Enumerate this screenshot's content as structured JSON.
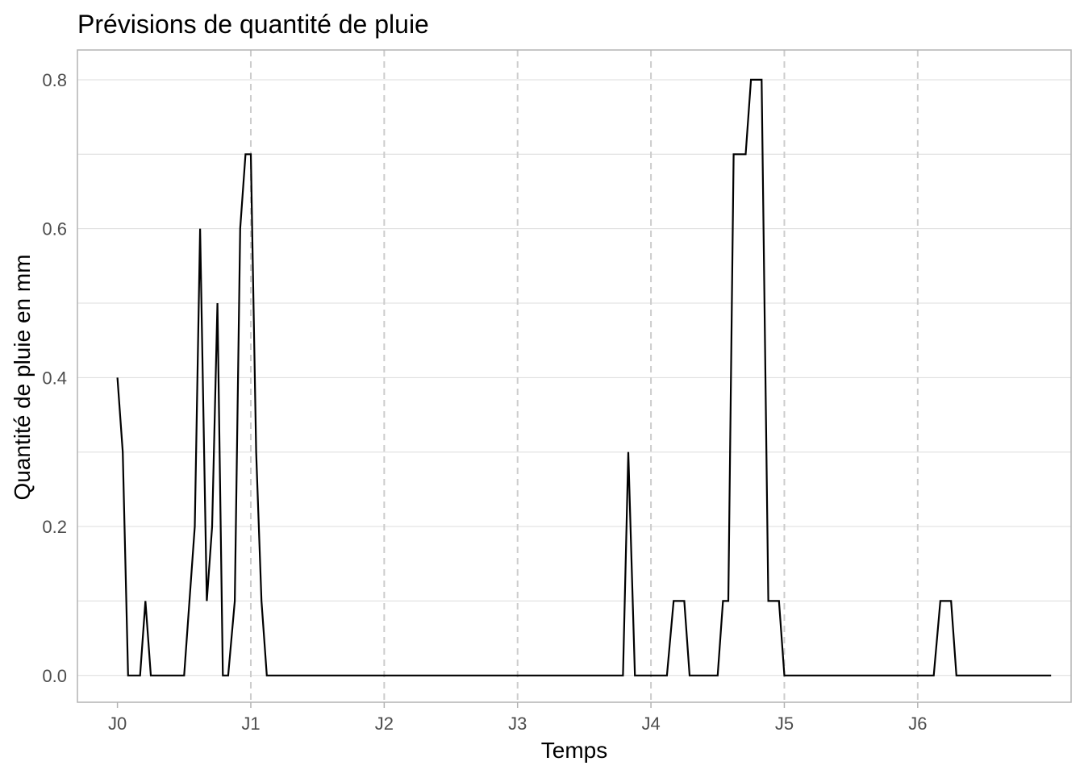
{
  "chart_data": {
    "type": "line",
    "title": "Prévisions de quantité de pluie",
    "xlabel": "Temps",
    "ylabel": "Quantité de pluie en mm",
    "x_range": [
      -0.3,
      7.15
    ],
    "ylim": [
      -0.036,
      0.84
    ],
    "x_ticks": [
      {
        "value": 0,
        "label": "J0"
      },
      {
        "value": 1,
        "label": "J1"
      },
      {
        "value": 2,
        "label": "J2"
      },
      {
        "value": 3,
        "label": "J3"
      },
      {
        "value": 4,
        "label": "J4"
      },
      {
        "value": 5,
        "label": "J5"
      },
      {
        "value": 6,
        "label": "J6"
      }
    ],
    "y_ticks": [
      {
        "value": 0.0,
        "label": "0.0"
      },
      {
        "value": 0.2,
        "label": "0.2"
      },
      {
        "value": 0.4,
        "label": "0.4"
      },
      {
        "value": 0.6,
        "label": "0.6"
      },
      {
        "value": 0.8,
        "label": "0.8"
      }
    ],
    "vertical_dashed_lines_at": [
      1,
      2,
      3,
      4,
      5,
      6
    ],
    "grid": true,
    "colors": {
      "line": "#000000",
      "grid": "#dcdcdc",
      "dashed": "#cccccc",
      "frame": "#b3b3b3"
    },
    "x": [
      0,
      0.04,
      0.08,
      0.12,
      0.17,
      0.21,
      0.25,
      0.29,
      0.33,
      0.38,
      0.42,
      0.46,
      0.5,
      0.54,
      0.58,
      0.62,
      0.67,
      0.71,
      0.75,
      0.79,
      0.83,
      0.88,
      0.92,
      0.96,
      1.0,
      1.04,
      1.08,
      1.12,
      1.17,
      1.5,
      2.0,
      2.5,
      3.0,
      3.5,
      3.79,
      3.83,
      3.88,
      3.92,
      3.96,
      4.0,
      4.04,
      4.08,
      4.12,
      4.17,
      4.21,
      4.25,
      4.29,
      4.33,
      4.38,
      4.42,
      4.46,
      4.5,
      4.54,
      4.58,
      4.62,
      4.67,
      4.71,
      4.75,
      4.79,
      4.83,
      4.88,
      4.92,
      4.96,
      5.0,
      5.04,
      5.08,
      5.12,
      5.5,
      6.0,
      6.12,
      6.17,
      6.21,
      6.25,
      6.29,
      6.33,
      6.38,
      6.5,
      7.0
    ],
    "values": [
      0.4,
      0.3,
      0.0,
      0.0,
      0.0,
      0.1,
      0.0,
      0.0,
      0.0,
      0.0,
      0.0,
      0.0,
      0.0,
      0.1,
      0.2,
      0.6,
      0.1,
      0.2,
      0.5,
      0.0,
      0.0,
      0.1,
      0.6,
      0.7,
      0.7,
      0.3,
      0.1,
      0.0,
      0.0,
      0.0,
      0.0,
      0.0,
      0.0,
      0.0,
      0.0,
      0.3,
      0.0,
      0.0,
      0.0,
      0.0,
      0.0,
      0.0,
      0.0,
      0.1,
      0.1,
      0.1,
      0.0,
      0.0,
      0.0,
      0.0,
      0.0,
      0.0,
      0.1,
      0.1,
      0.7,
      0.7,
      0.7,
      0.8,
      0.8,
      0.8,
      0.1,
      0.1,
      0.1,
      0.0,
      0.0,
      0.0,
      0.0,
      0.0,
      0.0,
      0.0,
      0.1,
      0.1,
      0.1,
      0.0,
      0.0,
      0.0,
      0.0,
      0.0
    ]
  }
}
